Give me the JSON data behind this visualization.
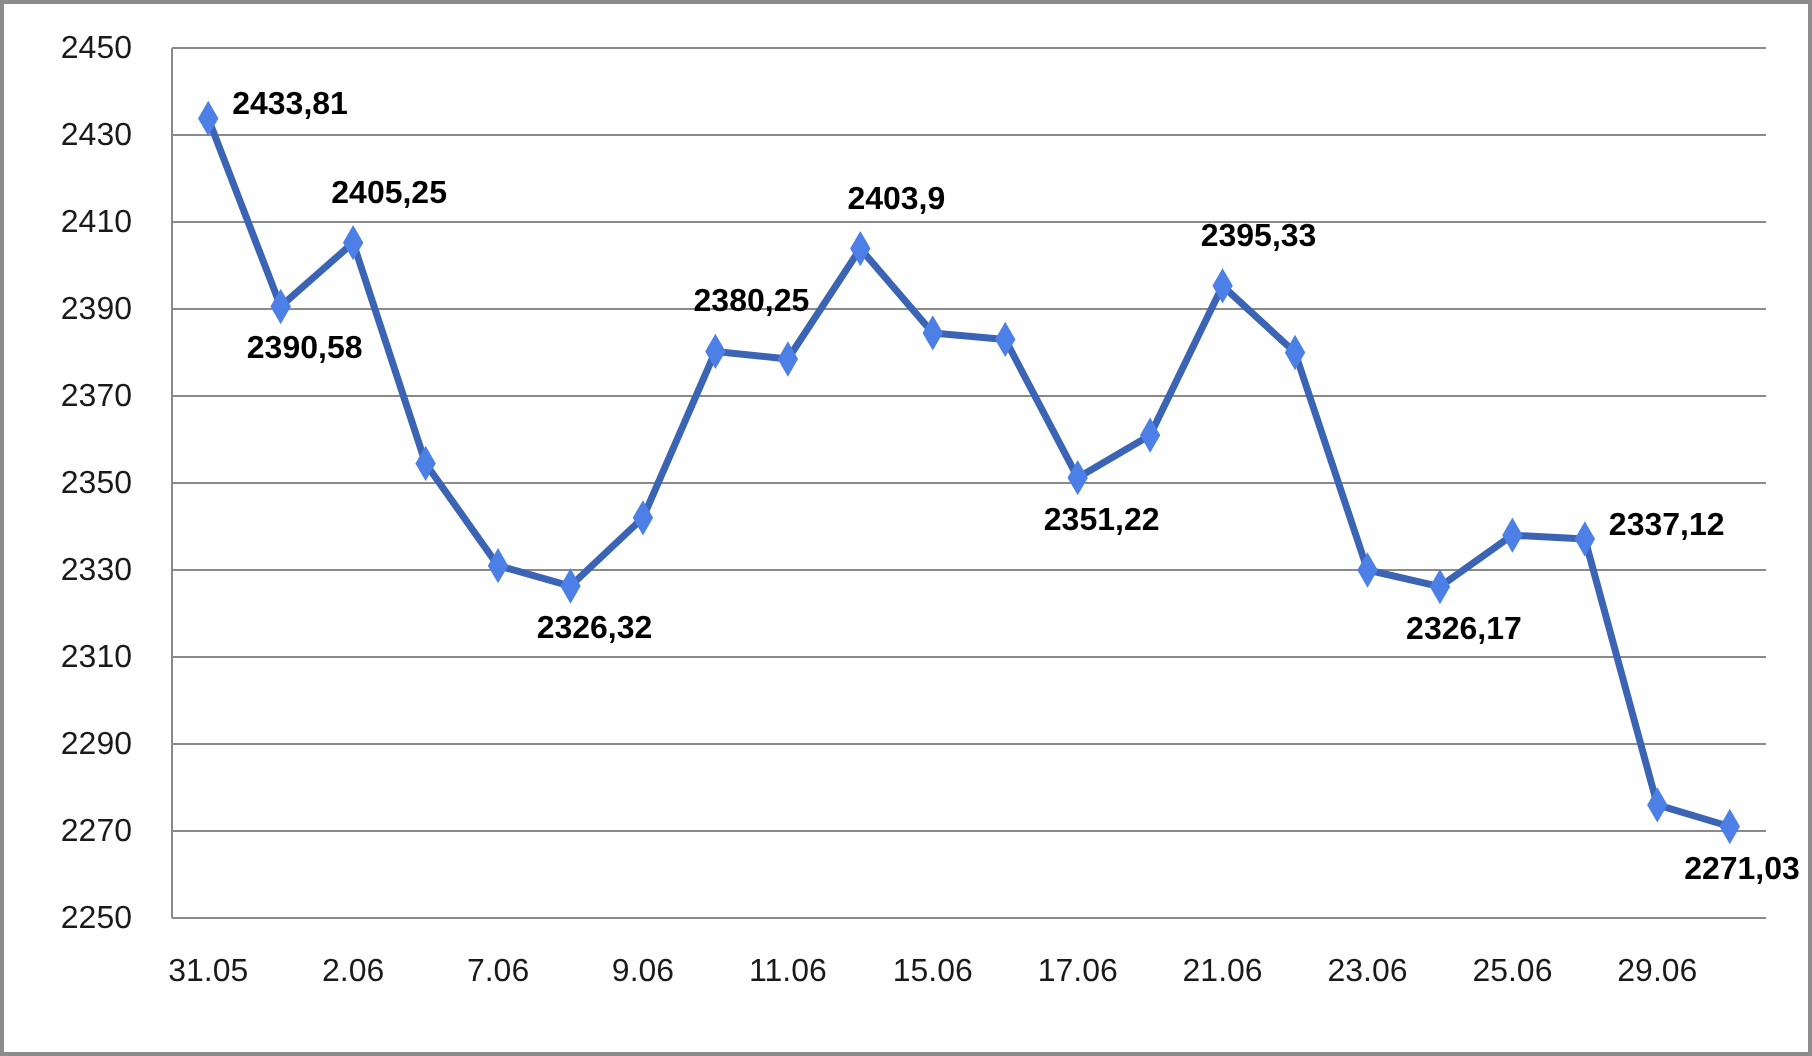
{
  "chart_data": {
    "type": "line",
    "categories": [
      "31.05",
      null,
      "2.06",
      null,
      "7.06",
      null,
      "9.06",
      null,
      "11.06",
      null,
      "15.06",
      null,
      "17.06",
      null,
      "21.06",
      null,
      "23.06",
      null,
      "25.06",
      null,
      "29.06",
      null
    ],
    "series": [
      {
        "color": "#3c64b4",
        "values": [
          2433.81,
          2390.58,
          2405.25,
          2354.5,
          2331,
          2326.32,
          2342,
          2380.25,
          2378.5,
          2403.9,
          2384.5,
          2383,
          2351.22,
          2361,
          2395.33,
          2380,
          2330,
          2326.17,
          2338,
          2337.12,
          2276,
          2271.03
        ],
        "value_labels": [
          "2433,81",
          "2390,58",
          "2405,25",
          null,
          null,
          "2326,32",
          null,
          "2380,25",
          null,
          "2403,9",
          null,
          null,
          "2351,22",
          null,
          "2395,33",
          null,
          null,
          "2326,17",
          null,
          "2337,12",
          null,
          "2271,03"
        ]
      }
    ],
    "ylim": [
      2250,
      2450
    ],
    "yticks": [
      2250,
      2270,
      2290,
      2310,
      2330,
      2350,
      2370,
      2390,
      2410,
      2430,
      2450
    ],
    "grid": "y",
    "marker": "diamond",
    "line_style": "solid"
  }
}
